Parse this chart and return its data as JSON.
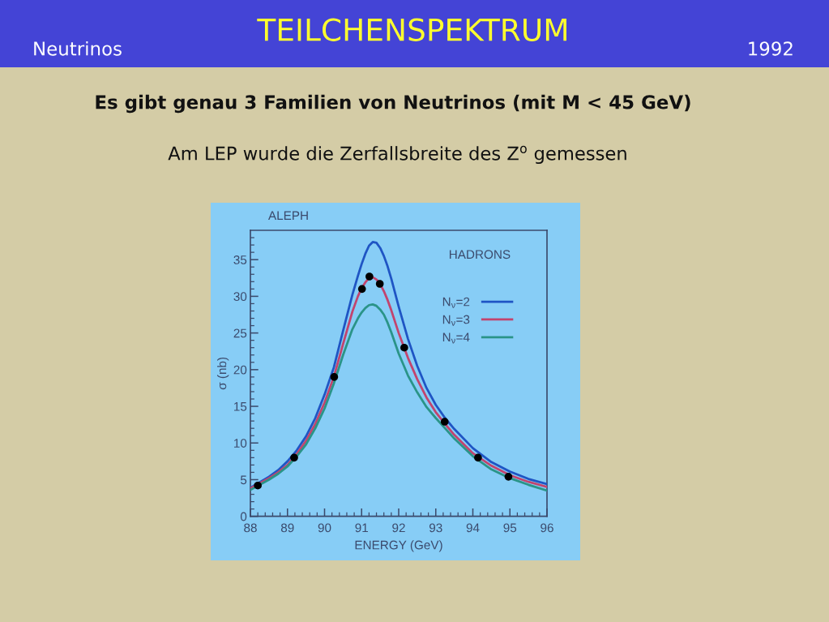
{
  "chart_data": {
    "type": "line",
    "title": "TEILCHENSPEKTRUM",
    "subtitle": "Es gibt genau 3 Familien von Neutrinos (mit M < 45 GeV)",
    "annotations": [
      "Neutrinos",
      "1992",
      "Am LEP wurde die Zerfallsbreite des Z$^{o}$ gemessen",
      "ALEPH",
      "HADRONS"
    ],
    "xlabel": "ENERGY (GeV)",
    "ylabel": "σ (nb)",
    "x": [
      88.0,
      88.5,
      88.75,
      89.0,
      89.25,
      89.5,
      89.75,
      90.0,
      90.25,
      90.5,
      90.75,
      90.9,
      91.0,
      91.1,
      91.2,
      91.3,
      91.4,
      91.5,
      91.6,
      91.7,
      91.8,
      92.0,
      92.25,
      92.5,
      92.75,
      93.0,
      93.25,
      93.5,
      94.0,
      94.5,
      95.0,
      95.5,
      96.0
    ],
    "series": [
      {
        "name": "N$_{ν}$=2",
        "color": "#1f55c4",
        "values": [
          3.9,
          5.4,
          6.3,
          7.5,
          9.0,
          10.9,
          13.4,
          16.6,
          20.3,
          25.3,
          30.2,
          32.8,
          34.4,
          35.8,
          36.9,
          37.4,
          37.3,
          36.6,
          35.5,
          34.1,
          32.4,
          28.6,
          24.2,
          20.5,
          17.5,
          15.2,
          13.4,
          11.9,
          9.3,
          7.4,
          6.1,
          5.1,
          4.4
        ]
      },
      {
        "name": "N$_{ν}$=3",
        "color": "#c2446e",
        "values": [
          3.8,
          5.2,
          6.0,
          7.0,
          8.5,
          10.3,
          12.6,
          15.5,
          19.0,
          23.5,
          27.9,
          30.0,
          31.1,
          31.9,
          32.5,
          32.6,
          32.3,
          31.7,
          30.7,
          29.5,
          28.1,
          25.0,
          21.6,
          18.7,
          16.2,
          14.2,
          12.6,
          11.1,
          8.6,
          6.9,
          5.6,
          4.7,
          4.0
        ]
      },
      {
        "name": "N$_{ν}$=4",
        "color": "#2a9488",
        "values": [
          3.6,
          5.0,
          5.8,
          6.8,
          8.2,
          9.8,
          12.0,
          14.7,
          18.1,
          22.0,
          25.5,
          27.0,
          27.8,
          28.4,
          28.8,
          28.9,
          28.7,
          28.2,
          27.5,
          26.4,
          25.1,
          22.2,
          19.2,
          16.9,
          14.9,
          13.4,
          12.0,
          10.6,
          8.2,
          6.4,
          5.2,
          4.3,
          3.5
        ]
      },
      {
        "type": "scatter",
        "color": "#000000",
        "marker": "circle",
        "x": [
          88.2,
          89.18,
          90.26,
          91.01,
          91.21,
          91.49,
          92.15,
          93.24,
          94.14,
          94.96
        ],
        "values": [
          4.2,
          8.0,
          19.0,
          31.0,
          32.7,
          31.7,
          23.0,
          12.9,
          8.0,
          5.4
        ]
      }
    ],
    "xlim": [
      88,
      96
    ],
    "ylim": [
      0,
      39
    ],
    "xticks": [
      88,
      {
        "value": 88.2,
        "label": null
      },
      {
        "value": 88.4,
        "label": null
      },
      {
        "value": 88.6,
        "label": null
      },
      {
        "value": 88.8,
        "label": null
      },
      89,
      {
        "value": 89.2,
        "label": null
      },
      {
        "value": 89.4,
        "label": null
      },
      {
        "value": 89.6,
        "label": null
      },
      {
        "value": 89.8,
        "label": null
      },
      90,
      {
        "value": 90.2,
        "label": null
      },
      {
        "value": 90.4,
        "label": null
      },
      {
        "value": 90.6,
        "label": null
      },
      {
        "value": 90.8,
        "label": null
      },
      91,
      {
        "value": 91.2,
        "label": null
      },
      {
        "value": 91.4,
        "label": null
      },
      {
        "value": 91.6,
        "label": null
      },
      {
        "value": 91.8,
        "label": null
      },
      92,
      {
        "value": 92.2,
        "label": null
      },
      {
        "value": 92.4,
        "label": null
      },
      {
        "value": 92.6,
        "label": null
      },
      {
        "value": 92.8,
        "label": null
      },
      93,
      {
        "value": 93.2,
        "label": null
      },
      {
        "value": 93.4,
        "label": null
      },
      {
        "value": 93.6,
        "label": null
      },
      {
        "value": 93.8,
        "label": null
      },
      94,
      {
        "value": 94.2,
        "label": null
      },
      {
        "value": 94.4,
        "label": null
      },
      {
        "value": 94.6,
        "label": null
      },
      {
        "value": 94.8,
        "label": null
      },
      95,
      {
        "value": 95.2,
        "label": null
      },
      {
        "value": 95.4,
        "label": null
      },
      {
        "value": 95.6,
        "label": null
      },
      {
        "value": 95.8,
        "label": null
      },
      96
    ],
    "yticks": [
      0,
      {
        "value": 1,
        "label": null
      },
      {
        "value": 2,
        "label": null
      },
      {
        "value": 3,
        "label": null
      },
      {
        "value": 4,
        "label": null
      },
      5,
      {
        "value": 6,
        "label": null
      },
      {
        "value": 7,
        "label": null
      },
      {
        "value": 8,
        "label": null
      },
      {
        "value": 9,
        "label": null
      },
      10,
      {
        "value": 11,
        "label": null
      },
      {
        "value": 12,
        "label": null
      },
      {
        "value": 13,
        "label": null
      },
      {
        "value": 14,
        "label": null
      },
      15,
      {
        "value": 16,
        "label": null
      },
      {
        "value": 17,
        "label": null
      },
      {
        "value": 18,
        "label": null
      },
      {
        "value": 19,
        "label": null
      },
      20,
      {
        "value": 21,
        "label": null
      },
      {
        "value": 22,
        "label": null
      },
      {
        "value": 23,
        "label": null
      },
      {
        "value": 24,
        "label": null
      },
      25,
      {
        "value": 26,
        "label": null
      },
      {
        "value": 27,
        "label": null
      },
      {
        "value": 28,
        "label": null
      },
      {
        "value": 29,
        "label": null
      },
      30,
      {
        "value": 31,
        "label": null
      },
      {
        "value": 32,
        "label": null
      },
      {
        "value": 33,
        "label": null
      },
      {
        "value": 34,
        "label": null
      },
      35,
      {
        "value": 36,
        "label": null
      },
      {
        "value": 37,
        "label": null
      },
      {
        "value": 38,
        "label": null
      }
    ],
    "legend": "top right",
    "line_style": "solid"
  }
}
